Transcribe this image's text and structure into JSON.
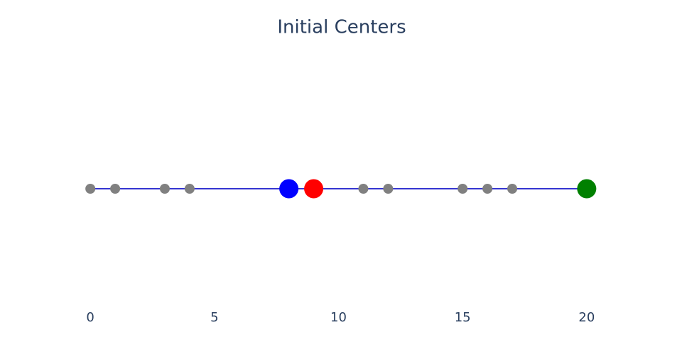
{
  "chart_data": {
    "type": "strip",
    "title": "Initial Centers",
    "xlim": [
      -1.35,
      21.55
    ],
    "xticks": [
      0,
      5,
      10,
      15,
      20
    ],
    "series": [
      {
        "color": "#3535d0",
        "x": [
          0,
          1,
          3,
          4,
          8,
          9,
          11,
          12,
          15,
          16,
          17,
          20
        ]
      },
      {
        "color": "#808080",
        "x": [
          0,
          1,
          3,
          4,
          11,
          12,
          15,
          16,
          17
        ]
      },
      {
        "colors": [
          "#0000ff",
          "#ff0000",
          "#008000"
        ],
        "x": [
          8,
          9,
          20
        ]
      }
    ]
  }
}
